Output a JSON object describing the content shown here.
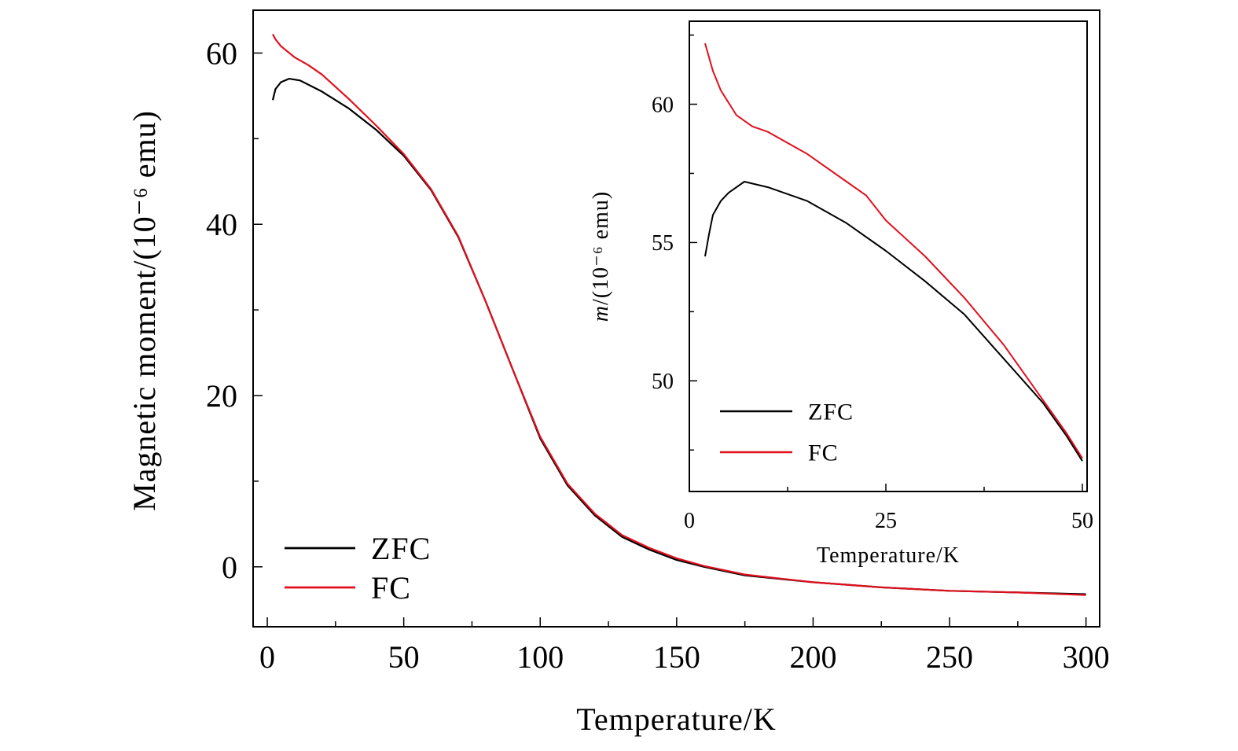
{
  "chart_data": [
    {
      "type": "line",
      "xlabel": "Temperature/K",
      "ylabel": "Magnetic moment/(10⁻⁶ emu)",
      "xlim": [
        -5.2,
        305
      ],
      "ylim": [
        -7,
        65
      ],
      "xticks": [
        0,
        50,
        100,
        150,
        200,
        250,
        300
      ],
      "yticks": [
        0,
        20,
        40,
        60
      ],
      "grid": false,
      "legend": "bottom-left",
      "series": [
        {
          "name": "ZFC",
          "color": "#000000",
          "x": [
            2,
            3,
            5,
            8,
            12,
            20,
            30,
            40,
            50,
            60,
            70,
            80,
            90,
            100,
            110,
            120,
            130,
            140,
            150,
            160,
            175,
            200,
            225,
            250,
            275,
            300
          ],
          "y": [
            54.5,
            55.8,
            56.6,
            57.0,
            56.8,
            55.5,
            53.5,
            51.0,
            48.0,
            44.0,
            38.5,
            31.0,
            23.0,
            15.0,
            9.5,
            6.0,
            3.5,
            2.0,
            0.8,
            0.0,
            -1.0,
            -1.8,
            -2.4,
            -2.8,
            -3.0,
            -3.2
          ]
        },
        {
          "name": "FC",
          "color": "#e0101e",
          "x": [
            2,
            3,
            5,
            10,
            15,
            20,
            30,
            40,
            50,
            60,
            70,
            80,
            90,
            100,
            110,
            120,
            130,
            140,
            150,
            160,
            175,
            200,
            225,
            250,
            275,
            300
          ],
          "y": [
            62.2,
            61.6,
            60.8,
            59.5,
            58.6,
            57.5,
            54.6,
            51.5,
            48.2,
            44.1,
            38.6,
            31.0,
            23.0,
            15.2,
            9.7,
            6.2,
            3.7,
            2.2,
            1.0,
            0.1,
            -0.9,
            -1.8,
            -2.4,
            -2.8,
            -3.0,
            -3.3
          ]
        }
      ]
    },
    {
      "type": "line",
      "xlabel": "Temperature/K",
      "ylabel_italic": "m",
      "ylabel": "/(10⁻⁶ emu)",
      "xlim": [
        0,
        50.6
      ],
      "ylim": [
        46,
        63
      ],
      "xticks": [
        0,
        25,
        50
      ],
      "yticks": [
        50,
        55,
        60
      ],
      "grid": false,
      "legend": "bottom-left",
      "series": [
        {
          "name": "ZFC",
          "color": "#000000",
          "x": [
            2,
            2.5,
            3,
            4,
            5,
            7,
            10,
            13,
            15,
            20,
            25,
            30,
            35,
            40,
            45,
            48,
            50
          ],
          "y": [
            54.5,
            55.3,
            56.0,
            56.5,
            56.8,
            57.2,
            57.0,
            56.7,
            56.5,
            55.7,
            54.7,
            53.6,
            52.4,
            50.8,
            49.2,
            48.0,
            47.1
          ]
        },
        {
          "name": "FC",
          "color": "#e0101e",
          "x": [
            2,
            3,
            4,
            6,
            8,
            10,
            15,
            20,
            22.5,
            25,
            30,
            35,
            40,
            45,
            48,
            50
          ],
          "y": [
            62.2,
            61.2,
            60.5,
            59.6,
            59.2,
            59.0,
            58.2,
            57.2,
            56.7,
            55.8,
            54.5,
            53.0,
            51.3,
            49.3,
            48.1,
            47.2
          ]
        }
      ]
    }
  ]
}
